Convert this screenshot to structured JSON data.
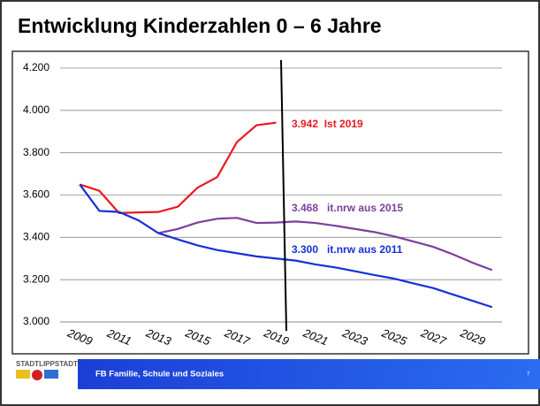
{
  "chart_data": {
    "type": "line",
    "title": "Entwicklung Kinderzahlen 0 – 6 Jahre",
    "xlim": [
      2008,
      2030.5
    ],
    "xticks": [
      2009,
      2011,
      2013,
      2015,
      2017,
      2019,
      2021,
      2023,
      2025,
      2027,
      2029
    ],
    "ylim": [
      3000,
      4200
    ],
    "yticks": [
      {
        "value": 3000,
        "label": "3.000"
      },
      {
        "value": 3200,
        "label": "3.200"
      },
      {
        "value": 3400,
        "label": "3.400"
      },
      {
        "value": 3600,
        "label": "3.600"
      },
      {
        "value": 3800,
        "label": "3.800"
      },
      {
        "value": 4000,
        "label": "4.000"
      },
      {
        "value": 4200,
        "label": "4.200"
      }
    ],
    "grid": true,
    "series": [
      {
        "color": "#e8191f",
        "x": [
          2009,
          2010,
          2011,
          2012,
          2013,
          2014,
          2015,
          2016,
          2017,
          2018,
          2019
        ],
        "values": [
          3650,
          3620,
          3515,
          3518,
          3520,
          3545,
          3635,
          3685,
          3850,
          3930,
          3942
        ]
      },
      {
        "color": "#7b3f9e",
        "x": [
          2013,
          2014,
          2015,
          2016,
          2017,
          2018,
          2019,
          2020,
          2021,
          2022,
          2023,
          2024,
          2025,
          2026,
          2027,
          2028,
          2029,
          2030
        ],
        "values": [
          3420,
          3440,
          3470,
          3488,
          3492,
          3468,
          3470,
          3475,
          3468,
          3455,
          3440,
          3425,
          3405,
          3380,
          3355,
          3320,
          3280,
          3245
        ]
      },
      {
        "color": "#1530d8",
        "x": [
          2009,
          2010,
          2011,
          2012,
          2013,
          2014,
          2015,
          2016,
          2017,
          2018,
          2019,
          2020,
          2021,
          2022,
          2023,
          2024,
          2025,
          2026,
          2027,
          2028,
          2029,
          2030
        ],
        "values": [
          3650,
          3525,
          3520,
          3480,
          3420,
          3390,
          3362,
          3340,
          3325,
          3310,
          3300,
          3290,
          3272,
          3258,
          3240,
          3222,
          3205,
          3182,
          3160,
          3130,
          3100,
          3070
        ]
      }
    ],
    "annotations": [
      {
        "text": "3.942  Ist 2019",
        "color": "#e8191f"
      },
      {
        "text": "3.468   it.nrw aus 2015",
        "color": "#7b3f9e"
      },
      {
        "text": "3.300   it.nrw aus 2011",
        "color": "#1530d8"
      }
    ]
  },
  "footer": {
    "logo": "STADTLIPPSTADT",
    "department": "FB Familie, Schule und Soziales",
    "page": "7"
  }
}
